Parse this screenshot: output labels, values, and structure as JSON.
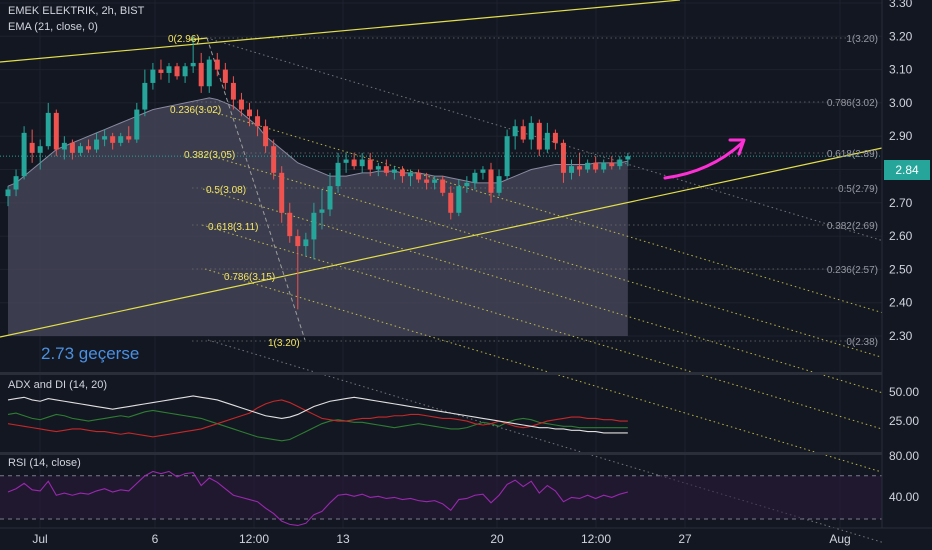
{
  "main_legend": {
    "symbol_line": "EMEK ELEKTRIK, 2h, BIST",
    "ema_line": "EMA (21, close, 0)"
  },
  "adx_legend": "ADX and DI (14, 20)",
  "rsi_legend": "RSI (14, close)",
  "annotation": "2.73 geçerse",
  "last_price": "2.84",
  "colors": {
    "background": "#131722",
    "up_candle": "#26a69a",
    "down_candle": "#ef5350",
    "trendline": "#e3df4a",
    "fib_label": "#f5e663",
    "arrow": "#ff2fd6",
    "ema_fill": "#4a4a5e",
    "adx": "#e0e0e0",
    "di_plus": "#2e7d32",
    "di_minus": "#c62828",
    "rsi": "#9c27b0",
    "annotation": "#4a90e2"
  },
  "price_axis": {
    "ticks": [
      "3.30",
      "3.20",
      "3.10",
      "3.00",
      "2.90",
      "2.80",
      "2.70",
      "2.60",
      "2.50",
      "2.40",
      "2.30"
    ]
  },
  "adx_axis": {
    "ticks": [
      "50.00",
      "25.00"
    ]
  },
  "rsi_axis": {
    "ticks": [
      "80.00",
      "40.00"
    ]
  },
  "time_axis": {
    "labels": [
      "Jul",
      "6",
      "12:00",
      "13",
      "20",
      "12:00",
      "27",
      "Aug"
    ]
  },
  "fib_left_labels": [
    "0(2.96)",
    "0.236(3.02)",
    "0.382(3.05)",
    "0.5(3.08)",
    "0.618(3.11)",
    "0.786(3.15)",
    "1(3.20)"
  ],
  "fib_right_labels": [
    "1(3.20)",
    "0.786(3.02)",
    "0.618(2.89)",
    "0.5(2.79)",
    "0.382(2.69)",
    "0.236(2.57)",
    "0(2.38)"
  ],
  "candles": [
    {
      "o": 2.72,
      "h": 2.75,
      "l": 2.69,
      "c": 2.74
    },
    {
      "o": 2.74,
      "h": 2.8,
      "l": 2.72,
      "c": 2.78
    },
    {
      "o": 2.78,
      "h": 2.93,
      "l": 2.77,
      "c": 2.91
    },
    {
      "o": 2.88,
      "h": 2.92,
      "l": 2.82,
      "c": 2.85
    },
    {
      "o": 2.85,
      "h": 2.89,
      "l": 2.8,
      "c": 2.87
    },
    {
      "o": 2.87,
      "h": 3.0,
      "l": 2.86,
      "c": 2.97
    },
    {
      "o": 2.97,
      "h": 2.98,
      "l": 2.84,
      "c": 2.86
    },
    {
      "o": 2.86,
      "h": 2.9,
      "l": 2.83,
      "c": 2.88
    },
    {
      "o": 2.88,
      "h": 2.89,
      "l": 2.83,
      "c": 2.85
    },
    {
      "o": 2.85,
      "h": 2.88,
      "l": 2.84,
      "c": 2.87
    },
    {
      "o": 2.87,
      "h": 2.89,
      "l": 2.85,
      "c": 2.86
    },
    {
      "o": 2.86,
      "h": 2.91,
      "l": 2.85,
      "c": 2.89
    },
    {
      "o": 2.89,
      "h": 2.92,
      "l": 2.87,
      "c": 2.9
    },
    {
      "o": 2.9,
      "h": 2.91,
      "l": 2.86,
      "c": 2.88
    },
    {
      "o": 2.88,
      "h": 2.91,
      "l": 2.87,
      "c": 2.9
    },
    {
      "o": 2.9,
      "h": 2.93,
      "l": 2.88,
      "c": 2.89
    },
    {
      "o": 2.89,
      "h": 3.0,
      "l": 2.88,
      "c": 2.98
    },
    {
      "o": 2.98,
      "h": 3.1,
      "l": 2.96,
      "c": 3.06
    },
    {
      "o": 3.06,
      "h": 3.12,
      "l": 3.04,
      "c": 3.1
    },
    {
      "o": 3.1,
      "h": 3.13,
      "l": 3.07,
      "c": 3.09
    },
    {
      "o": 3.09,
      "h": 3.12,
      "l": 3.06,
      "c": 3.11
    },
    {
      "o": 3.11,
      "h": 3.12,
      "l": 3.07,
      "c": 3.08
    },
    {
      "o": 3.08,
      "h": 3.12,
      "l": 3.06,
      "c": 3.11
    },
    {
      "o": 3.11,
      "h": 3.2,
      "l": 3.09,
      "c": 3.12
    },
    {
      "o": 3.12,
      "h": 3.15,
      "l": 3.03,
      "c": 3.05
    },
    {
      "o": 3.05,
      "h": 3.14,
      "l": 3.03,
      "c": 3.13
    },
    {
      "o": 3.13,
      "h": 3.15,
      "l": 3.08,
      "c": 3.1
    },
    {
      "o": 3.1,
      "h": 3.12,
      "l": 3.04,
      "c": 3.06
    },
    {
      "o": 3.06,
      "h": 3.08,
      "l": 2.98,
      "c": 3.01
    },
    {
      "o": 3.01,
      "h": 3.03,
      "l": 2.96,
      "c": 2.98
    },
    {
      "o": 2.98,
      "h": 3.0,
      "l": 2.93,
      "c": 2.96
    },
    {
      "o": 2.96,
      "h": 2.98,
      "l": 2.9,
      "c": 2.93
    },
    {
      "o": 2.93,
      "h": 2.95,
      "l": 2.85,
      "c": 2.87
    },
    {
      "o": 2.87,
      "h": 2.89,
      "l": 2.77,
      "c": 2.79
    },
    {
      "o": 2.79,
      "h": 2.81,
      "l": 2.64,
      "c": 2.67
    },
    {
      "o": 2.67,
      "h": 2.7,
      "l": 2.58,
      "c": 2.6
    },
    {
      "o": 2.6,
      "h": 2.62,
      "l": 2.38,
      "c": 2.57
    },
    {
      "o": 2.57,
      "h": 2.61,
      "l": 2.54,
      "c": 2.59
    },
    {
      "o": 2.59,
      "h": 2.7,
      "l": 2.53,
      "c": 2.67
    },
    {
      "o": 2.67,
      "h": 2.74,
      "l": 2.62,
      "c": 2.68
    },
    {
      "o": 2.68,
      "h": 2.79,
      "l": 2.66,
      "c": 2.75
    },
    {
      "o": 2.75,
      "h": 2.85,
      "l": 2.73,
      "c": 2.82
    },
    {
      "o": 2.82,
      "h": 2.85,
      "l": 2.79,
      "c": 2.83
    },
    {
      "o": 2.83,
      "h": 2.85,
      "l": 2.8,
      "c": 2.81
    },
    {
      "o": 2.81,
      "h": 2.85,
      "l": 2.79,
      "c": 2.83
    },
    {
      "o": 2.83,
      "h": 2.85,
      "l": 2.78,
      "c": 2.8
    },
    {
      "o": 2.8,
      "h": 2.82,
      "l": 2.78,
      "c": 2.81
    },
    {
      "o": 2.81,
      "h": 2.83,
      "l": 2.78,
      "c": 2.79
    },
    {
      "o": 2.79,
      "h": 2.81,
      "l": 2.77,
      "c": 2.8
    },
    {
      "o": 2.8,
      "h": 2.81,
      "l": 2.76,
      "c": 2.78
    },
    {
      "o": 2.78,
      "h": 2.8,
      "l": 2.75,
      "c": 2.79
    },
    {
      "o": 2.79,
      "h": 2.8,
      "l": 2.76,
      "c": 2.77
    },
    {
      "o": 2.77,
      "h": 2.79,
      "l": 2.74,
      "c": 2.76
    },
    {
      "o": 2.76,
      "h": 2.78,
      "l": 2.74,
      "c": 2.77
    },
    {
      "o": 2.77,
      "h": 2.78,
      "l": 2.72,
      "c": 2.73
    },
    {
      "o": 2.73,
      "h": 2.75,
      "l": 2.65,
      "c": 2.67
    },
    {
      "o": 2.67,
      "h": 2.77,
      "l": 2.66,
      "c": 2.75
    },
    {
      "o": 2.75,
      "h": 2.78,
      "l": 2.73,
      "c": 2.76
    },
    {
      "o": 2.76,
      "h": 2.8,
      "l": 2.74,
      "c": 2.79
    },
    {
      "o": 2.79,
      "h": 2.81,
      "l": 2.77,
      "c": 2.8
    },
    {
      "o": 2.8,
      "h": 2.82,
      "l": 2.7,
      "c": 2.73
    },
    {
      "o": 2.73,
      "h": 2.8,
      "l": 2.72,
      "c": 2.78
    },
    {
      "o": 2.78,
      "h": 2.92,
      "l": 2.77,
      "c": 2.9
    },
    {
      "o": 2.9,
      "h": 2.95,
      "l": 2.86,
      "c": 2.93
    },
    {
      "o": 2.93,
      "h": 2.95,
      "l": 2.88,
      "c": 2.89
    },
    {
      "o": 2.89,
      "h": 2.96,
      "l": 2.86,
      "c": 2.94
    },
    {
      "o": 2.94,
      "h": 2.95,
      "l": 2.84,
      "c": 2.86
    },
    {
      "o": 2.86,
      "h": 2.94,
      "l": 2.85,
      "c": 2.91
    },
    {
      "o": 2.91,
      "h": 2.92,
      "l": 2.86,
      "c": 2.88
    },
    {
      "o": 2.88,
      "h": 2.89,
      "l": 2.76,
      "c": 2.79
    },
    {
      "o": 2.79,
      "h": 2.83,
      "l": 2.77,
      "c": 2.81
    },
    {
      "o": 2.81,
      "h": 2.85,
      "l": 2.78,
      "c": 2.8
    },
    {
      "o": 2.8,
      "h": 2.83,
      "l": 2.79,
      "c": 2.82
    },
    {
      "o": 2.82,
      "h": 2.84,
      "l": 2.79,
      "c": 2.8
    },
    {
      "o": 2.8,
      "h": 2.83,
      "l": 2.79,
      "c": 2.82
    },
    {
      "o": 2.82,
      "h": 2.84,
      "l": 2.8,
      "c": 2.81
    },
    {
      "o": 2.81,
      "h": 2.84,
      "l": 2.8,
      "c": 2.83
    },
    {
      "o": 2.83,
      "h": 2.85,
      "l": 2.81,
      "c": 2.84
    }
  ],
  "ema": [
    2.75,
    2.76,
    2.78,
    2.8,
    2.82,
    2.84,
    2.86,
    2.87,
    2.88,
    2.89,
    2.9,
    2.91,
    2.92,
    2.93,
    2.94,
    2.95,
    2.96,
    2.97,
    2.98,
    2.985,
    2.99,
    2.995,
    3.0,
    3.005,
    3.01,
    3.015,
    3.01,
    3.0,
    2.99,
    2.97,
    2.95,
    2.93,
    2.9,
    2.88,
    2.86,
    2.84,
    2.82,
    2.81,
    2.8,
    2.79,
    2.78,
    2.78,
    2.78,
    2.785,
    2.79,
    2.79,
    2.795,
    2.795,
    2.795,
    2.79,
    2.79,
    2.79,
    2.785,
    2.78,
    2.78,
    2.775,
    2.77,
    2.765,
    2.76,
    2.76,
    2.76,
    2.76,
    2.77,
    2.78,
    2.79,
    2.8,
    2.805,
    2.81,
    2.815,
    2.815,
    2.815,
    2.815,
    2.815,
    2.82,
    2.82,
    2.82,
    2.82,
    2.825
  ],
  "adx": [
    44,
    45,
    46,
    44,
    43,
    45,
    44,
    43,
    42,
    41,
    40,
    39,
    38,
    37,
    38,
    39,
    40,
    41,
    42,
    43,
    44,
    45,
    46,
    47,
    46,
    45,
    44,
    42,
    40,
    38,
    36,
    34,
    32,
    31,
    30,
    31,
    33,
    36,
    39,
    41,
    43,
    44,
    45,
    46,
    45,
    44,
    43,
    42,
    41,
    40,
    39,
    38,
    37,
    36,
    35,
    34,
    33,
    32,
    31,
    30,
    29,
    28,
    27,
    26,
    25,
    24,
    23,
    23,
    22,
    22,
    21,
    21,
    20,
    20,
    19,
    19,
    19,
    19
  ],
  "di_plus": [
    33,
    34,
    32,
    30,
    29,
    31,
    33,
    32,
    30,
    29,
    28,
    29,
    30,
    31,
    32,
    31,
    33,
    35,
    36,
    35,
    34,
    33,
    32,
    31,
    30,
    28,
    26,
    24,
    22,
    20,
    18,
    16,
    15,
    14,
    13,
    14,
    17,
    20,
    23,
    26,
    28,
    29,
    28,
    27,
    27,
    26,
    25,
    24,
    23,
    24,
    25,
    26,
    25,
    24,
    23,
    22,
    22,
    23,
    25,
    27,
    26,
    24,
    27,
    29,
    30,
    29,
    27,
    26,
    25,
    24,
    24,
    23,
    23,
    23,
    23,
    23,
    23,
    23
  ],
  "di_minus": [
    26,
    25,
    24,
    23,
    22,
    21,
    20,
    21,
    22,
    22,
    21,
    20,
    20,
    19,
    18,
    19,
    18,
    17,
    16,
    17,
    18,
    19,
    20,
    21,
    22,
    24,
    26,
    28,
    30,
    32,
    34,
    38,
    41,
    43,
    44,
    42,
    39,
    36,
    33,
    30,
    29,
    28,
    28,
    29,
    30,
    30,
    31,
    31,
    32,
    32,
    33,
    33,
    32,
    31,
    30,
    30,
    29,
    28,
    26,
    25,
    26,
    28,
    26,
    24,
    23,
    24,
    26,
    28,
    29,
    30,
    31,
    31,
    30,
    30,
    29,
    29,
    28,
    28
  ],
  "rsi": [
    55,
    58,
    63,
    57,
    56,
    65,
    52,
    54,
    52,
    54,
    53,
    56,
    58,
    55,
    57,
    56,
    63,
    70,
    74,
    72,
    74,
    69,
    72,
    73,
    61,
    68,
    64,
    58,
    52,
    50,
    48,
    46,
    40,
    35,
    28,
    25,
    24,
    26,
    34,
    37,
    45,
    52,
    53,
    51,
    53,
    50,
    51,
    49,
    50,
    48,
    49,
    47,
    46,
    47,
    44,
    38,
    48,
    49,
    52,
    53,
    45,
    52,
    62,
    66,
    60,
    65,
    54,
    61,
    56,
    46,
    50,
    49,
    52,
    49,
    52,
    50,
    53,
    55
  ]
}
